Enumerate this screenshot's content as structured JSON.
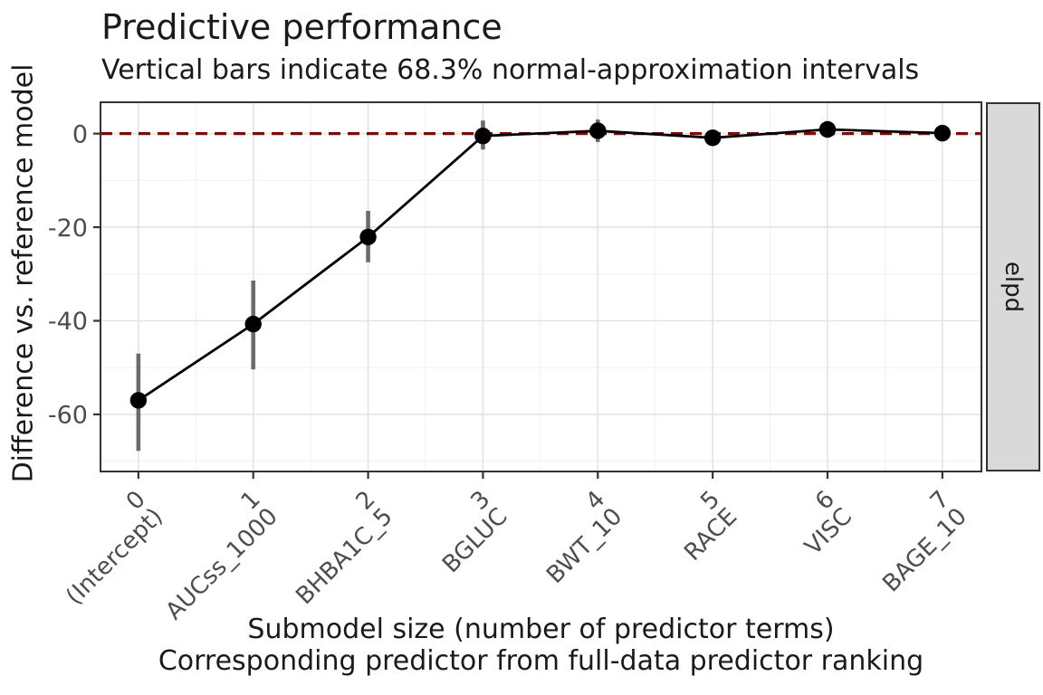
{
  "chart_data": {
    "type": "line",
    "title": "Predictive performance",
    "subtitle": "Vertical bars indicate 68.3% normal-approximation intervals",
    "xlabel_lines": [
      "Submodel size (number of predictor terms)",
      "Corresponding predictor from full-data predictor ranking"
    ],
    "ylabel": "Difference vs. reference model",
    "facet_strip_label": "elpd",
    "x": [
      0,
      1,
      2,
      3,
      4,
      5,
      6,
      7
    ],
    "x_tick_predictors": [
      "(Intercept)",
      "AUCss_1000",
      "BHBA1C_5",
      "BGLUC",
      "BWT_10",
      "RACE",
      "VISC",
      "BAGE_10"
    ],
    "y_ticks": [
      0,
      -20,
      -40,
      -60
    ],
    "y_minor_ticks": [
      -10,
      -30,
      -50,
      -70
    ],
    "x_minor_ticks": [
      0.5,
      1.5,
      2.5,
      3.5,
      4.5,
      5.5,
      6.5
    ],
    "xlim": [
      -0.33,
      7.34
    ],
    "ylim": [
      -72.2,
      6.7
    ],
    "series": [
      {
        "name": "elpd difference vs. reference model",
        "values": [
          -57.0,
          -40.7,
          -22.1,
          -0.5,
          0.6,
          -0.9,
          0.9,
          0.1
        ],
        "ci_lower": [
          -67.8,
          -50.4,
          -27.5,
          -3.4,
          -1.8,
          -2.6,
          -0.8,
          -1.6
        ],
        "ci_upper": [
          -47.0,
          -31.4,
          -16.5,
          2.8,
          3.0,
          0.8,
          2.6,
          1.8
        ]
      }
    ],
    "interval_level": "68.3%",
    "reference_line": {
      "y": 0,
      "style": "dashed"
    },
    "grid": "major+minor",
    "legend": "none",
    "colors": {
      "point": "#000000",
      "line": "#000000",
      "interval_bar": "#6b6b6b",
      "reference_line": "#8B0000",
      "strip_fill": "#d9d9d9",
      "strip_border": "#333333",
      "panel_border": "#333333",
      "grid_major": "#e3e3e3",
      "grid_minor": "#f0f0f0",
      "tick_mark": "#333333",
      "tick_label": "#4d4d4d",
      "text": "#1a1a1a",
      "background": "#ffffff"
    }
  }
}
